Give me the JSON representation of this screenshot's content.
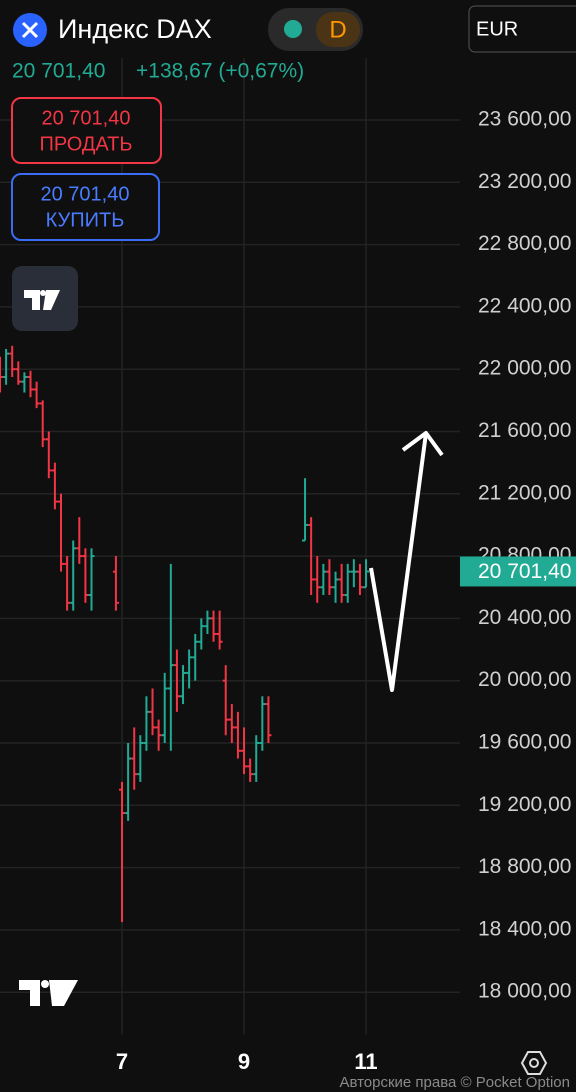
{
  "header": {
    "title": "Индекс DAX",
    "price": "20 701,40",
    "change": "+138,67 (+0,67%)",
    "timeframe": "D",
    "currency": "EUR",
    "sell": {
      "price": "20 701,40",
      "label": "ПРОДАТЬ"
    },
    "buy": {
      "price": "20 701,40",
      "label": "КУПИТЬ"
    }
  },
  "footer": {
    "copyright": "Авторские права © Pocket Option"
  },
  "chart_data": {
    "type": "ohlc",
    "up_color": "#22ab94",
    "down_color": "#f23645",
    "grid": true,
    "xlim": [
      5,
      12.54
    ],
    "xticks": [
      7,
      9,
      11
    ],
    "ylim": [
      17650,
      24000
    ],
    "yticks": [
      {
        "value": 18000,
        "label": "18 000,00"
      },
      {
        "value": 18400,
        "label": "18 400,00"
      },
      {
        "value": 18800,
        "label": "18 800,00"
      },
      {
        "value": 19200,
        "label": "19 200,00"
      },
      {
        "value": 19600,
        "label": "19 600,00"
      },
      {
        "value": 20000,
        "label": "20 000,00"
      },
      {
        "value": 20400,
        "label": "20 400,00"
      },
      {
        "value": 20800,
        "label": "20 800,00"
      },
      {
        "value": 21200,
        "label": "21 200,00"
      },
      {
        "value": 21600,
        "label": "21 600,00"
      },
      {
        "value": 22000,
        "label": "22 000,00"
      },
      {
        "value": 22400,
        "label": "22 400,00"
      },
      {
        "value": 22800,
        "label": "22 800,00"
      },
      {
        "value": 23200,
        "label": "23 200,00"
      },
      {
        "value": 23600,
        "label": "23 600,00"
      }
    ],
    "last_price": {
      "value": 20701.4,
      "label": "20 701,40"
    },
    "x": [
      5.0,
      5.1,
      5.2,
      5.3,
      5.4,
      5.5,
      5.6,
      5.7,
      5.8,
      5.9,
      6.0,
      6.1,
      6.2,
      6.3,
      6.4,
      6.5,
      6.9,
      7.0,
      7.1,
      7.2,
      7.3,
      7.4,
      7.5,
      7.6,
      7.7,
      7.8,
      7.9,
      8.0,
      8.1,
      8.2,
      8.3,
      8.4,
      8.5,
      8.6,
      8.7,
      8.8,
      8.9,
      9.0,
      9.1,
      9.2,
      9.3,
      9.4,
      10.0,
      10.1,
      10.2,
      10.3,
      10.4,
      10.5,
      10.6,
      10.7,
      10.8,
      10.9,
      11.0
    ],
    "open": [
      22000,
      21950,
      22100,
      22000,
      21920,
      21950,
      21870,
      21780,
      21550,
      21350,
      21150,
      20750,
      20500,
      20850,
      20800,
      20550,
      20700,
      19300,
      19150,
      19500,
      19400,
      19600,
      19800,
      19700,
      19650,
      19950,
      20100,
      19900,
      20050,
      20150,
      20250,
      20350,
      20400,
      20300,
      20000,
      19750,
      19700,
      19550,
      19450,
      19400,
      19600,
      19850,
      20900,
      21000,
      20650,
      20600,
      20700,
      20600,
      20650,
      20550,
      20700,
      20700,
      20600
    ],
    "high": [
      22080,
      22130,
      22150,
      22050,
      21980,
      21990,
      21920,
      21800,
      21600,
      21400,
      21200,
      20800,
      20900,
      21050,
      20850,
      20850,
      20800,
      19350,
      19600,
      19700,
      19650,
      19900,
      19950,
      19750,
      20050,
      20750,
      20200,
      20100,
      20200,
      20300,
      20400,
      20450,
      20450,
      20450,
      20100,
      19850,
      19800,
      19700,
      19500,
      19650,
      19900,
      19900,
      21300,
      21050,
      20800,
      20750,
      20780,
      20700,
      20750,
      20750,
      20780,
      20750,
      20780
    ],
    "low": [
      21850,
      21900,
      21950,
      21900,
      21850,
      21820,
      21750,
      21500,
      21300,
      21100,
      20700,
      20450,
      20450,
      20750,
      20500,
      20450,
      20450,
      18450,
      19100,
      19300,
      19350,
      19550,
      19650,
      19550,
      19600,
      19550,
      19800,
      19850,
      19950,
      20000,
      20200,
      20300,
      20250,
      20200,
      19650,
      19600,
      19500,
      19400,
      19350,
      19350,
      19550,
      19600,
      20900,
      20550,
      20500,
      20550,
      20550,
      20500,
      20500,
      20500,
      20600,
      20550,
      20600
    ],
    "close": [
      21950,
      22100,
      22000,
      21920,
      21950,
      21870,
      21780,
      21550,
      21350,
      21150,
      20750,
      20500,
      20850,
      20800,
      20550,
      20800,
      20500,
      19150,
      19500,
      19400,
      19600,
      19800,
      19700,
      19650,
      19950,
      20100,
      19900,
      20050,
      20150,
      20250,
      20350,
      20400,
      20300,
      20250,
      19750,
      19700,
      19550,
      19450,
      19400,
      19600,
      19850,
      19650,
      21000,
      20650,
      20600,
      20700,
      20600,
      20650,
      20550,
      20700,
      20700,
      20600,
      20701.4
    ]
  }
}
